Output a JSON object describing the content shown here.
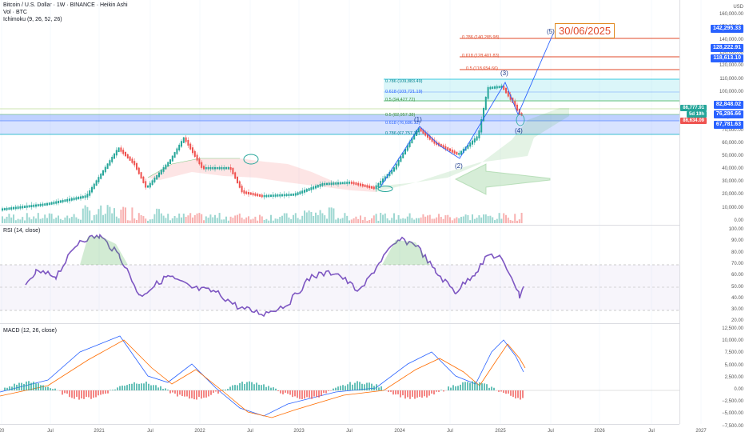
{
  "header": {
    "symbol_line": "Bitcoin / U.S. Dollar · 1W · BINANCE · Heikin Ashi",
    "vol_line": "Vol · BTC",
    "ichimoku_line": "Ichimoku (9, 26, 52, 26)",
    "currency": "USD"
  },
  "panes": {
    "rsi_title": "RSI (14, close)",
    "macd_title": "MACD (12, 26, close)"
  },
  "price_axis": [
    "160,000.00",
    "150,000.00",
    "140,000.00",
    "130,000.00",
    "120,000.00",
    "110,000.00",
    "100,000.00",
    "90,000.00",
    "80,000.00",
    "70,000.00",
    "60,000.00",
    "50,000.00",
    "40,000.00",
    "30,000.00",
    "20,000.00",
    "10,000.00",
    "0.00"
  ],
  "rsi_axis": [
    "100.00",
    "90.00",
    "80.00",
    "70.00",
    "60.00",
    "50.00",
    "40.00",
    "30.00",
    "20.00"
  ],
  "macd_axis": [
    "12,500.00",
    "10,000.00",
    "7,500.00",
    "5,000.00",
    "2,500.00",
    "0.00",
    "−2,500.00",
    "−5,000.00",
    "−7,500.00"
  ],
  "time_axis": [
    "20",
    "Jul",
    "2021",
    "Jul",
    "2022",
    "Jul",
    "2023",
    "Jul",
    "2024",
    "Jul",
    "2025",
    "Jul",
    "2026",
    "Jul",
    "2027"
  ],
  "price_tags": [
    {
      "text": "142,295.33"
    },
    {
      "text": "128,222.91"
    },
    {
      "text": "118,613.10"
    },
    {
      "text": "82,848.02"
    },
    {
      "text": "76,286.66"
    },
    {
      "text": "67,781.63"
    }
  ],
  "last_price": {
    "value": "86,777.91",
    "countdown": "5d 19h",
    "low": "86,634.09"
  },
  "fib_levels": [
    {
      "text": "0.786 (140,285.98)"
    },
    {
      "text": "0.618 (128,401.83)"
    },
    {
      "text": "0.5 (118,654.66)"
    },
    {
      "text": "0.786 (109,883.49)"
    },
    {
      "text": "0.618 (103,721.19)"
    },
    {
      "text": "0.5 (94,427.72)"
    },
    {
      "text": "0.5 (82,957.38)"
    },
    {
      "text": "0.618 (76,686.13)"
    },
    {
      "text": "0.786 (67,757.32)"
    }
  ],
  "waves": [
    "(1)",
    "(2)",
    "(3)",
    "(4)",
    "(5)"
  ],
  "target_date": "30/06/2025",
  "colors": {
    "up": "#26a69a",
    "down": "#ef5350",
    "rsi_line": "#7e57c2",
    "macd_line": "#2962ff",
    "signal_line": "#ff6d00",
    "fib_red": "#e0492a",
    "accent": "#2962ff"
  }
}
